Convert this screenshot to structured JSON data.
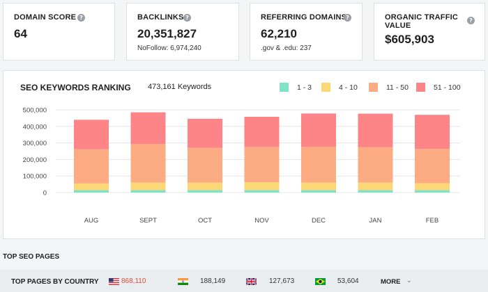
{
  "stats": [
    {
      "label": "DOMAIN SCORE",
      "value": "64",
      "sub": ""
    },
    {
      "label": "BACKLINKS",
      "value": "20,351,827",
      "sub": "NoFollow: 6,974,240"
    },
    {
      "label": "REFERRING DOMAINS",
      "value": "62,210",
      "sub": ".gov & .edu: 237"
    },
    {
      "label": "ORGANIC TRAFFIC VALUE",
      "value": "$605,903",
      "sub": ""
    }
  ],
  "help_glyph": "?",
  "ranking": {
    "title": "SEO KEYWORDS RANKING",
    "keywords_count": "473,161 Keywords"
  },
  "chart_data": {
    "type": "bar",
    "stacked": true,
    "title": "SEO KEYWORDS RANKING",
    "categories": [
      "AUG",
      "SEPT",
      "OCT",
      "NOV",
      "DEC",
      "JAN",
      "FEB"
    ],
    "yticks": [
      "500,000",
      "400,000",
      "300,000",
      "200,000",
      "100,000",
      "0"
    ],
    "ylim": [
      0,
      500000
    ],
    "grid": true,
    "legend_position": "top-right",
    "series": [
      {
        "name": "1 - 3",
        "color": "#7fe3c5",
        "values": [
          15000,
          15000,
          15000,
          15000,
          15000,
          15000,
          15000
        ]
      },
      {
        "name": "4 - 10",
        "color": "#fbd775",
        "values": [
          40000,
          45000,
          45000,
          48000,
          45000,
          45000,
          42000
        ]
      },
      {
        "name": "11 - 50",
        "color": "#fcab82",
        "values": [
          207000,
          233000,
          210000,
          213000,
          217000,
          215000,
          207000
        ]
      },
      {
        "name": "51 - 100",
        "color": "#fd8587",
        "values": [
          178000,
          192000,
          176000,
          182000,
          201000,
          202000,
          206000
        ]
      }
    ]
  },
  "top_seo": {
    "section_title": "TOP SEO PAGES",
    "by_country_label": "TOP PAGES BY COUNTRY",
    "countries": [
      {
        "flag": "us-flag",
        "value": "868,110",
        "color": "#e0493a"
      },
      {
        "flag": "india-flag",
        "value": "188,149",
        "color": "#333333"
      },
      {
        "flag": "uk-flag",
        "value": "127,673",
        "color": "#333333"
      },
      {
        "flag": "brazil-flag",
        "value": "53,604",
        "color": "#333333"
      }
    ],
    "more_label": "MORE",
    "more_icon": "chevron-down-icon"
  }
}
